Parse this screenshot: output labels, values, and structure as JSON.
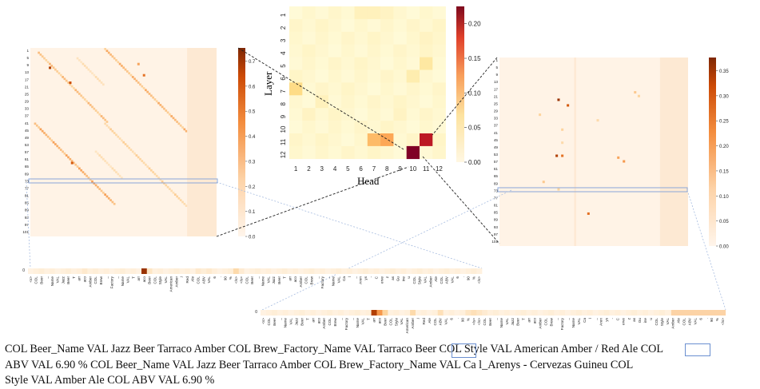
{
  "center_heatmap": {
    "ylabel": "Layer",
    "xlabel": "Head",
    "x_ticks": [
      "1",
      "2",
      "3",
      "4",
      "5",
      "6",
      "7",
      "8",
      "9",
      "10",
      "11",
      "12"
    ],
    "y_ticks": [
      "1",
      "2",
      "3",
      "4",
      "5",
      "6",
      "7",
      "8",
      "9",
      "10",
      "11",
      "12"
    ],
    "colorbar_ticks": [
      "0.00",
      "0.05",
      "0.10",
      "0.15",
      "0.20"
    ]
  },
  "left_heatmap": {
    "y_ticks": [
      "1",
      "5",
      "9",
      "13",
      "17",
      "21",
      "25",
      "29",
      "33",
      "37",
      "41",
      "45",
      "49",
      "53",
      "57",
      "61",
      "65",
      "69",
      "73",
      "77",
      "81",
      "85",
      "89",
      "93",
      "97",
      "101"
    ],
    "colorbar_ticks": [
      "0.0",
      "0.1",
      "0.2",
      "0.3",
      "0.4",
      "0.5",
      "0.6",
      "0.7"
    ]
  },
  "right_heatmap": {
    "y_ticks": [
      "1",
      "5",
      "9",
      "13",
      "17",
      "21",
      "25",
      "29",
      "33",
      "37",
      "41",
      "45",
      "49",
      "53",
      "57",
      "61",
      "65",
      "69",
      "73",
      "77",
      "81",
      "85",
      "89",
      "93",
      "97",
      "101"
    ],
    "colorbar_ticks": [
      "0.00",
      "0.05",
      "0.10",
      "0.15",
      "0.20",
      "0.25",
      "0.30",
      "0.35"
    ]
  },
  "strip1": {
    "row_label": "0",
    "tokens": [
      "<s>",
      "COL",
      "Beer",
      "_",
      "Name",
      "VAL",
      "Jazz",
      "Beer",
      "T",
      "arr",
      "aco",
      "Amber",
      "COL",
      "Brew",
      "_",
      "Factory",
      "_",
      "Name",
      "VAL",
      "T",
      "arr",
      "aco",
      "Beer",
      "COL",
      "Style",
      "VAL",
      "American",
      "Amber",
      "/",
      "Red",
      "Ale",
      "COL",
      "ABV",
      "VAL",
      "6",
      ".",
      "90",
      "%",
      "</s>",
      "</s>",
      "COL",
      "Beer",
      "_",
      "Name",
      "VAL",
      "Jazz",
      "Beer",
      "T",
      "arr",
      "aco",
      "Amber",
      "COL",
      "Brew",
      "_",
      "Factory",
      "_",
      "Name",
      "VAL",
      "Ca",
      "l",
      "_",
      "Aren",
      "ys",
      "-",
      "C",
      "erve",
      "z",
      "as",
      "Gu",
      "ine",
      "u",
      "COL",
      "Style",
      "VAL",
      "Amber",
      "Ale",
      "COL",
      "ABV",
      "VAL",
      "6",
      ".",
      "90",
      "%",
      "</s>"
    ]
  },
  "strip2": {
    "row_label": "0",
    "tokens": [
      "<s>",
      "COL",
      "Beer",
      "_",
      "Name",
      "VAL",
      "Jazz",
      "Beer",
      "T",
      "arr",
      "aco",
      "Amber",
      "COL",
      "Brew",
      "_",
      "Factory",
      "_",
      "Name",
      "VAL",
      "T",
      "arr",
      "aco",
      "Beer",
      "COL",
      "Style",
      "VAL",
      "American",
      "Amber",
      "/",
      "Red",
      "Ale",
      "COL",
      "ABV",
      "VAL",
      "6",
      ".",
      "90",
      "%",
      "</s>",
      "</s>",
      "COL",
      "Beer",
      "_",
      "Name",
      "VAL",
      "Jazz",
      "Beer",
      "T",
      "arr",
      "aco",
      "Amber",
      "COL",
      "Brew",
      "_",
      "Factory",
      "_",
      "Name",
      "VAL",
      "Ca",
      "l",
      "_",
      "Aren",
      "ys",
      "-",
      "C",
      "erve",
      "z",
      "as",
      "Gu",
      "ine",
      "u",
      "COL",
      "Style",
      "VAL",
      "Amber",
      "Ale",
      "COL",
      "ABV",
      "VAL",
      "6",
      ".",
      "90",
      "%",
      "</s>"
    ]
  },
  "caption": {
    "line1": "COL Beer_Name VAL Jazz Beer Tarraco Amber COL Brew_Factory_Name VAL Tarraco Beer COL Style VAL American Amber / Red Ale COL",
    "line2": "ABV VAL 6.90 %        COL Beer_Name VAL Jazz Beer Tarraco Amber COL Brew_Factory_Name VAL Ca l_Arenys - Cervezas Guineu COL",
    "line3": "Style VAL Amber Ale COL ABV VAL 6.90 %"
  }
}
